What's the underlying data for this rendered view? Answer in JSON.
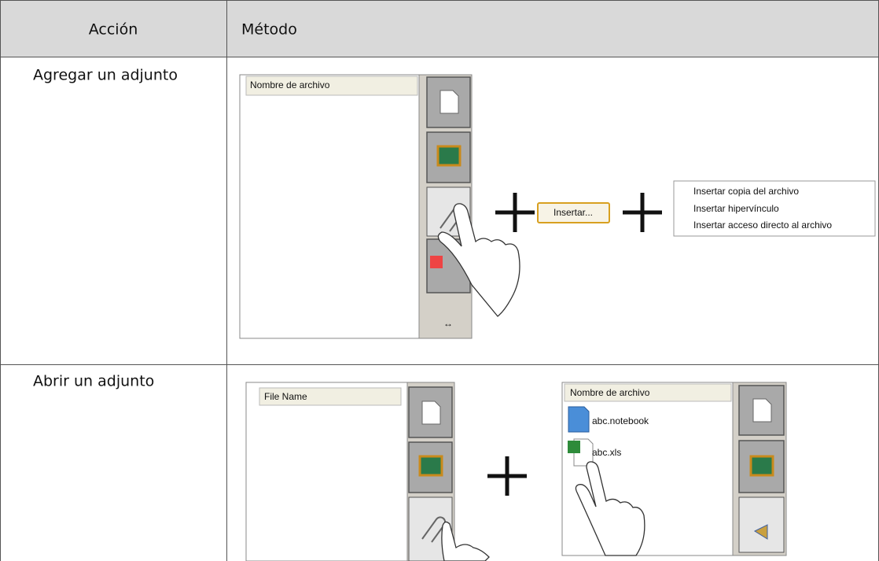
{
  "table": {
    "header": [
      "Acción",
      "Método"
    ],
    "rows": [
      {
        "action": "Agregar un adjunto",
        "method": {
          "panel_header": "Nombre de archivo",
          "button": "Insertar...",
          "menu": [
            "Insertar copia del archivo",
            "Insertar hipervínculo",
            "Insertar acceso directo al archivo"
          ]
        }
      },
      {
        "action": "Abrir un adjunto",
        "method": {
          "panel_header": "File Name",
          "panel2_header": "Nombre de archivo",
          "files": [
            "abc.notebook",
            "abc.xls"
          ]
        }
      }
    ]
  }
}
